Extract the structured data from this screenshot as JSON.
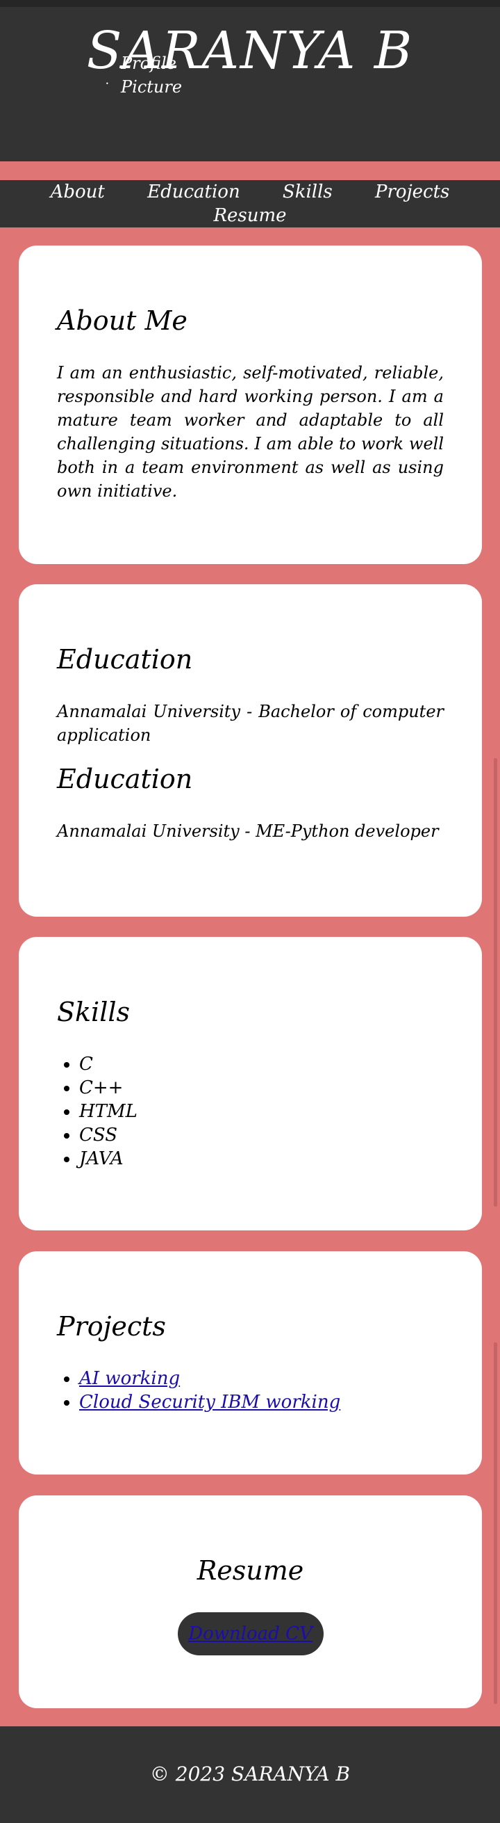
{
  "header": {
    "name": "SARANYA B",
    "profile_image_alt": [
      "Profile",
      "Picture"
    ]
  },
  "nav": {
    "items": [
      "About",
      "Education",
      "Skills",
      "Projects",
      "Resume"
    ]
  },
  "about": {
    "heading": "About Me",
    "text": "I am an enthusiastic, self-motivated, reliable, responsible and hard working person. I am a mature team worker and adaptable to all challenging situations. I am able to work well both in a team environment as well as using own initiative."
  },
  "education": {
    "entries": [
      {
        "heading": "Education",
        "text": "Annamalai University - Bachelor of computer application"
      },
      {
        "heading": "Education",
        "text": "Annamalai University - ME-Python developer"
      }
    ]
  },
  "skills": {
    "heading": "Skills",
    "items": [
      "C",
      "C++",
      "HTML",
      "CSS",
      "JAVA"
    ]
  },
  "projects": {
    "heading": "Projects",
    "items": [
      "AI working",
      "Cloud Security IBM working"
    ]
  },
  "resume": {
    "heading": "Resume",
    "button_label": "Download CV"
  },
  "footer": {
    "text": "© 2023 SARANYA B"
  },
  "colors": {
    "page_background": "#e07576",
    "header_background": "#333333",
    "card_background": "#ffffff",
    "link": "#1a0dab"
  }
}
